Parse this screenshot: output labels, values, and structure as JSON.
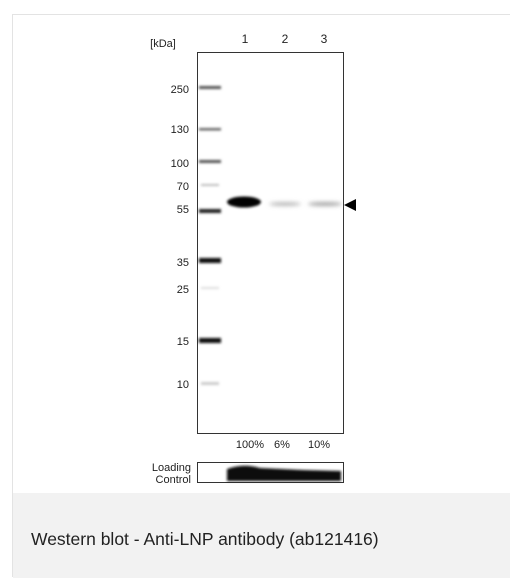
{
  "unit_label": "[kDa]",
  "lane_numbers": [
    "1",
    "2",
    "3"
  ],
  "marker_labels": [
    "250",
    "130",
    "100",
    "70",
    "55",
    "35",
    "25",
    "15",
    "10"
  ],
  "loading_percentages": [
    "100%",
    "6%",
    "10%"
  ],
  "loading_control_label": [
    "Loading",
    "Control"
  ],
  "caption": "Western blot - Anti-LNP antibody (ab121416)",
  "colors": {
    "band": "#000000",
    "frame": "#333333",
    "caption_bg": "#f2f2f2"
  }
}
